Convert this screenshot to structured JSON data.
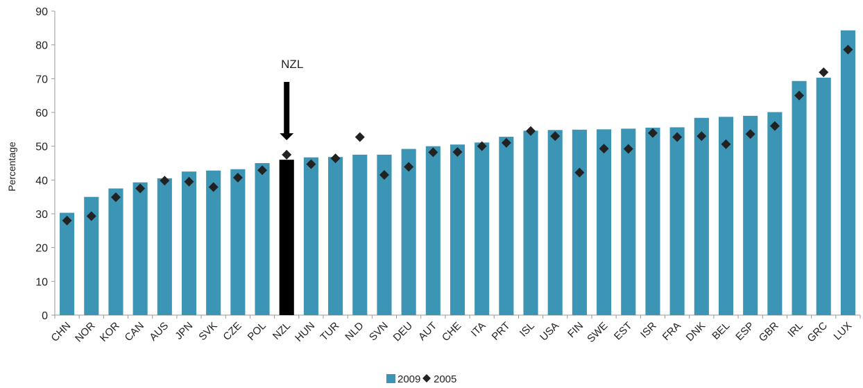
{
  "chart_data": {
    "type": "bar",
    "title": "",
    "xlabel": "",
    "ylabel": "Percentage",
    "ylim": [
      0,
      90
    ],
    "yticks": [
      0,
      10,
      20,
      30,
      40,
      50,
      60,
      70,
      80,
      90
    ],
    "grid": false,
    "legend_position": "bottom-center",
    "highlight_category": "NZL",
    "annotation": "NZL",
    "categories": [
      "CHN",
      "NOR",
      "KOR",
      "CAN",
      "AUS",
      "JPN",
      "SVK",
      "CZE",
      "POL",
      "NZL",
      "HUN",
      "TUR",
      "NLD",
      "SVN",
      "DEU",
      "AUT",
      "CHE",
      "ITA",
      "PRT",
      "ISL",
      "USA",
      "FIN",
      "SWE",
      "EST",
      "ISR",
      "FRA",
      "DNK",
      "BEL",
      "ESP",
      "GBR",
      "IRL",
      "GRC",
      "LUX"
    ],
    "series": [
      {
        "name": "2009",
        "kind": "bar",
        "color": "#3d95b5",
        "values": [
          30.3,
          35.0,
          37.5,
          39.3,
          40.5,
          42.5,
          42.8,
          43.2,
          45.0,
          46.0,
          46.7,
          46.8,
          47.5,
          47.5,
          49.2,
          50.0,
          50.5,
          51.1,
          52.8,
          54.6,
          54.8,
          54.9,
          55.0,
          55.2,
          55.5,
          55.6,
          58.4,
          58.7,
          59.0,
          60.1,
          69.3,
          70.3,
          84.3
        ]
      },
      {
        "name": "2005",
        "kind": "marker",
        "color": "#222222",
        "values": [
          28.0,
          29.3,
          34.9,
          37.5,
          39.8,
          39.5,
          37.9,
          40.7,
          42.9,
          47.5,
          44.7,
          46.4,
          52.7,
          41.5,
          43.9,
          48.2,
          48.3,
          50.0,
          51.0,
          54.5,
          53.0,
          42.2,
          49.3,
          49.2,
          53.9,
          52.7,
          53.0,
          50.6,
          53.6,
          56.0,
          65.0,
          71.9,
          78.6
        ]
      }
    ],
    "colors": {
      "highlight_bar": "#000000",
      "axis": "#999999"
    }
  }
}
